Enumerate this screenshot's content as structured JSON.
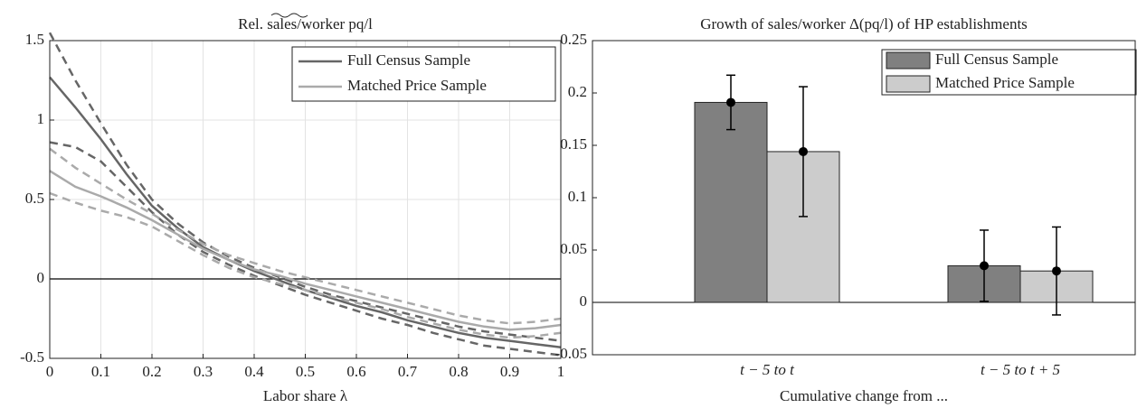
{
  "chart_data": [
    {
      "type": "line",
      "title": "Rel. sales/worker pq/l",
      "xlabel": "Labor share λ",
      "x": [
        0,
        0.05,
        0.1,
        0.15,
        0.2,
        0.25,
        0.3,
        0.35,
        0.4,
        0.45,
        0.5,
        0.55,
        0.6,
        0.65,
        0.7,
        0.75,
        0.8,
        0.85,
        0.9,
        0.95,
        1
      ],
      "xlim": [
        0,
        1
      ],
      "xticks": [
        0,
        0.1,
        0.2,
        0.3,
        0.4,
        0.5,
        0.6,
        0.7,
        0.8,
        0.9,
        1
      ],
      "ylim": [
        -0.5,
        1.5
      ],
      "yticks": [
        -0.5,
        0,
        0.5,
        1,
        1.5
      ],
      "grid": true,
      "legend": "upper right",
      "series": [
        {
          "name": "Full Census Sample",
          "color": "#666666",
          "values": [
            1.27,
            1.08,
            0.88,
            0.66,
            0.46,
            0.32,
            0.2,
            0.12,
            0.05,
            -0.01,
            -0.07,
            -0.12,
            -0.17,
            -0.21,
            -0.26,
            -0.3,
            -0.34,
            -0.37,
            -0.39,
            -0.41,
            -0.43
          ],
          "upper": [
            1.55,
            1.25,
            0.98,
            0.72,
            0.5,
            0.35,
            0.23,
            0.14,
            0.07,
            0.01,
            -0.05,
            -0.1,
            -0.14,
            -0.18,
            -0.22,
            -0.26,
            -0.3,
            -0.33,
            -0.35,
            -0.37,
            -0.39
          ],
          "lower": [
            0.86,
            0.83,
            0.74,
            0.58,
            0.42,
            0.28,
            0.17,
            0.09,
            0.02,
            -0.04,
            -0.1,
            -0.15,
            -0.2,
            -0.25,
            -0.29,
            -0.34,
            -0.38,
            -0.42,
            -0.44,
            -0.46,
            -0.48
          ]
        },
        {
          "name": "Matched Price Sample",
          "color": "#aaaaaa",
          "values": [
            0.68,
            0.58,
            0.52,
            0.45,
            0.37,
            0.28,
            0.19,
            0.12,
            0.06,
            0.02,
            -0.03,
            -0.07,
            -0.11,
            -0.15,
            -0.19,
            -0.23,
            -0.27,
            -0.3,
            -0.32,
            -0.31,
            -0.29
          ],
          "upper": [
            0.82,
            0.7,
            0.6,
            0.5,
            0.41,
            0.31,
            0.22,
            0.15,
            0.1,
            0.05,
            0.01,
            -0.03,
            -0.07,
            -0.11,
            -0.15,
            -0.19,
            -0.23,
            -0.26,
            -0.28,
            -0.27,
            -0.25
          ],
          "lower": [
            0.54,
            0.48,
            0.43,
            0.39,
            0.33,
            0.24,
            0.15,
            0.07,
            0.01,
            -0.03,
            -0.07,
            -0.11,
            -0.15,
            -0.19,
            -0.24,
            -0.28,
            -0.32,
            -0.35,
            -0.37,
            -0.36,
            -0.34
          ]
        }
      ]
    },
    {
      "type": "bar",
      "title": "Growth of sales/worker Δ(pq/l) of HP establishments",
      "xlabel": "Cumulative change from ...",
      "categories": [
        "t − 5  to  t",
        "t − 5  to  t + 5"
      ],
      "ylim": [
        -0.05,
        0.25
      ],
      "yticks": [
        -0.05,
        0,
        0.05,
        0.1,
        0.15,
        0.2,
        0.25
      ],
      "grid": false,
      "legend": "upper right",
      "series": [
        {
          "name": "Full Census Sample",
          "color": "#808080",
          "values": [
            0.191,
            0.035
          ],
          "errors": [
            0.026,
            0.034
          ]
        },
        {
          "name": "Matched Price Sample",
          "color": "#cccccc",
          "values": [
            0.144,
            0.03
          ],
          "errors": [
            0.062,
            0.042
          ]
        }
      ]
    }
  ]
}
